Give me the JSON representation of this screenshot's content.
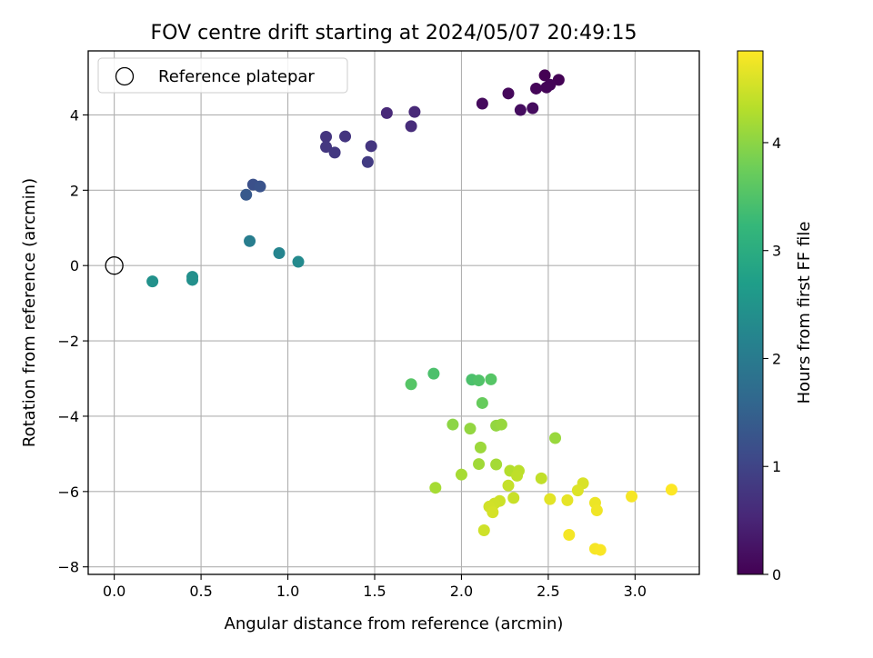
{
  "chart_data": {
    "type": "scatter",
    "title": "FOV centre drift starting at 2024/05/07 20:49:15",
    "xlabel": "Angular distance from reference (arcmin)",
    "ylabel": "Rotation from reference (arcmin)",
    "xlim": [
      -0.15,
      3.37
    ],
    "ylim": [
      -8.2,
      5.7
    ],
    "x_ticks": [
      0.0,
      0.5,
      1.0,
      1.5,
      2.0,
      2.5,
      3.0
    ],
    "x_tick_labels": [
      "0.0",
      "0.5",
      "1.0",
      "1.5",
      "2.0",
      "2.5",
      "3.0"
    ],
    "y_ticks": [
      -8,
      -6,
      -4,
      -2,
      0,
      2,
      4
    ],
    "y_tick_labels": [
      "−8",
      "−6",
      "−4",
      "−2",
      "0",
      "2",
      "4"
    ],
    "grid": true,
    "legend": {
      "placement": "top-left",
      "entries": [
        {
          "label": "Reference platepar",
          "marker": "open-circle"
        }
      ]
    },
    "reference_point": {
      "x": 0.0,
      "y": 0.0
    },
    "colorbar": {
      "label": "Hours from first FF file",
      "colormap": "viridis",
      "range": [
        0,
        4.85
      ],
      "ticks": [
        0,
        1,
        2,
        3,
        4
      ],
      "tick_labels": [
        "0",
        "1",
        "2",
        "3",
        "4"
      ]
    },
    "points": [
      {
        "x": 2.48,
        "y": 5.05,
        "c": 0.0
      },
      {
        "x": 2.56,
        "y": 4.93,
        "c": 0.02
      },
      {
        "x": 2.51,
        "y": 4.8,
        "c": 0.04
      },
      {
        "x": 2.49,
        "y": 4.73,
        "c": 0.05
      },
      {
        "x": 2.43,
        "y": 4.7,
        "c": 0.07
      },
      {
        "x": 2.27,
        "y": 4.57,
        "c": 0.1
      },
      {
        "x": 2.12,
        "y": 4.3,
        "c": 0.13
      },
      {
        "x": 2.41,
        "y": 4.18,
        "c": 0.15
      },
      {
        "x": 2.34,
        "y": 4.13,
        "c": 0.17
      },
      {
        "x": 1.57,
        "y": 4.05,
        "c": 0.55
      },
      {
        "x": 1.73,
        "y": 4.08,
        "c": 0.55
      },
      {
        "x": 1.71,
        "y": 3.7,
        "c": 0.6
      },
      {
        "x": 1.22,
        "y": 3.42,
        "c": 0.75
      },
      {
        "x": 1.33,
        "y": 3.43,
        "c": 0.75
      },
      {
        "x": 1.22,
        "y": 3.15,
        "c": 0.78
      },
      {
        "x": 1.48,
        "y": 3.17,
        "c": 0.75
      },
      {
        "x": 1.27,
        "y": 3.0,
        "c": 0.8
      },
      {
        "x": 1.46,
        "y": 2.75,
        "c": 0.85
      },
      {
        "x": 0.8,
        "y": 2.15,
        "c": 1.2
      },
      {
        "x": 0.84,
        "y": 2.1,
        "c": 1.25
      },
      {
        "x": 0.76,
        "y": 1.88,
        "c": 1.35
      },
      {
        "x": 0.78,
        "y": 0.65,
        "c": 2.05
      },
      {
        "x": 0.95,
        "y": 0.33,
        "c": 2.2
      },
      {
        "x": 1.06,
        "y": 0.1,
        "c": 2.3
      },
      {
        "x": 0.45,
        "y": -0.3,
        "c": 2.4
      },
      {
        "x": 0.45,
        "y": -0.38,
        "c": 2.42
      },
      {
        "x": 0.22,
        "y": -0.42,
        "c": 2.45
      },
      {
        "x": 1.84,
        "y": -2.87,
        "c": 3.45
      },
      {
        "x": 2.06,
        "y": -3.03,
        "c": 3.45
      },
      {
        "x": 2.1,
        "y": -3.05,
        "c": 3.5
      },
      {
        "x": 2.17,
        "y": -3.02,
        "c": 3.55
      },
      {
        "x": 1.71,
        "y": -3.15,
        "c": 3.55
      },
      {
        "x": 2.12,
        "y": -3.65,
        "c": 3.7
      },
      {
        "x": 1.95,
        "y": -4.22,
        "c": 4.0
      },
      {
        "x": 2.05,
        "y": -4.33,
        "c": 4.05
      },
      {
        "x": 2.2,
        "y": -4.25,
        "c": 4.05
      },
      {
        "x": 2.23,
        "y": -4.22,
        "c": 4.08
      },
      {
        "x": 2.54,
        "y": -4.58,
        "c": 4.1
      },
      {
        "x": 2.11,
        "y": -4.83,
        "c": 4.12
      },
      {
        "x": 2.1,
        "y": -5.27,
        "c": 4.15
      },
      {
        "x": 2.2,
        "y": -5.28,
        "c": 4.18
      },
      {
        "x": 2.0,
        "y": -5.55,
        "c": 4.2
      },
      {
        "x": 2.28,
        "y": -5.45,
        "c": 4.3
      },
      {
        "x": 2.33,
        "y": -5.45,
        "c": 4.35
      },
      {
        "x": 2.32,
        "y": -5.58,
        "c": 4.38
      },
      {
        "x": 2.46,
        "y": -5.65,
        "c": 4.4
      },
      {
        "x": 2.27,
        "y": -5.84,
        "c": 4.42
      },
      {
        "x": 1.85,
        "y": -5.9,
        "c": 4.2
      },
      {
        "x": 2.3,
        "y": -6.17,
        "c": 4.45
      },
      {
        "x": 2.22,
        "y": -6.25,
        "c": 4.48
      },
      {
        "x": 2.19,
        "y": -6.32,
        "c": 4.5
      },
      {
        "x": 2.16,
        "y": -6.4,
        "c": 4.52
      },
      {
        "x": 2.18,
        "y": -6.55,
        "c": 4.55
      },
      {
        "x": 2.13,
        "y": -7.03,
        "c": 4.5
      },
      {
        "x": 2.7,
        "y": -5.78,
        "c": 4.58
      },
      {
        "x": 2.67,
        "y": -5.97,
        "c": 4.6
      },
      {
        "x": 2.51,
        "y": -6.2,
        "c": 4.65
      },
      {
        "x": 2.61,
        "y": -6.23,
        "c": 4.68
      },
      {
        "x": 2.77,
        "y": -6.3,
        "c": 4.72
      },
      {
        "x": 2.78,
        "y": -6.5,
        "c": 4.75
      },
      {
        "x": 2.62,
        "y": -7.15,
        "c": 4.78
      },
      {
        "x": 2.77,
        "y": -7.52,
        "c": 4.8
      },
      {
        "x": 2.8,
        "y": -7.55,
        "c": 4.82
      },
      {
        "x": 2.98,
        "y": -6.13,
        "c": 4.8
      },
      {
        "x": 3.21,
        "y": -5.95,
        "c": 4.85
      }
    ]
  }
}
